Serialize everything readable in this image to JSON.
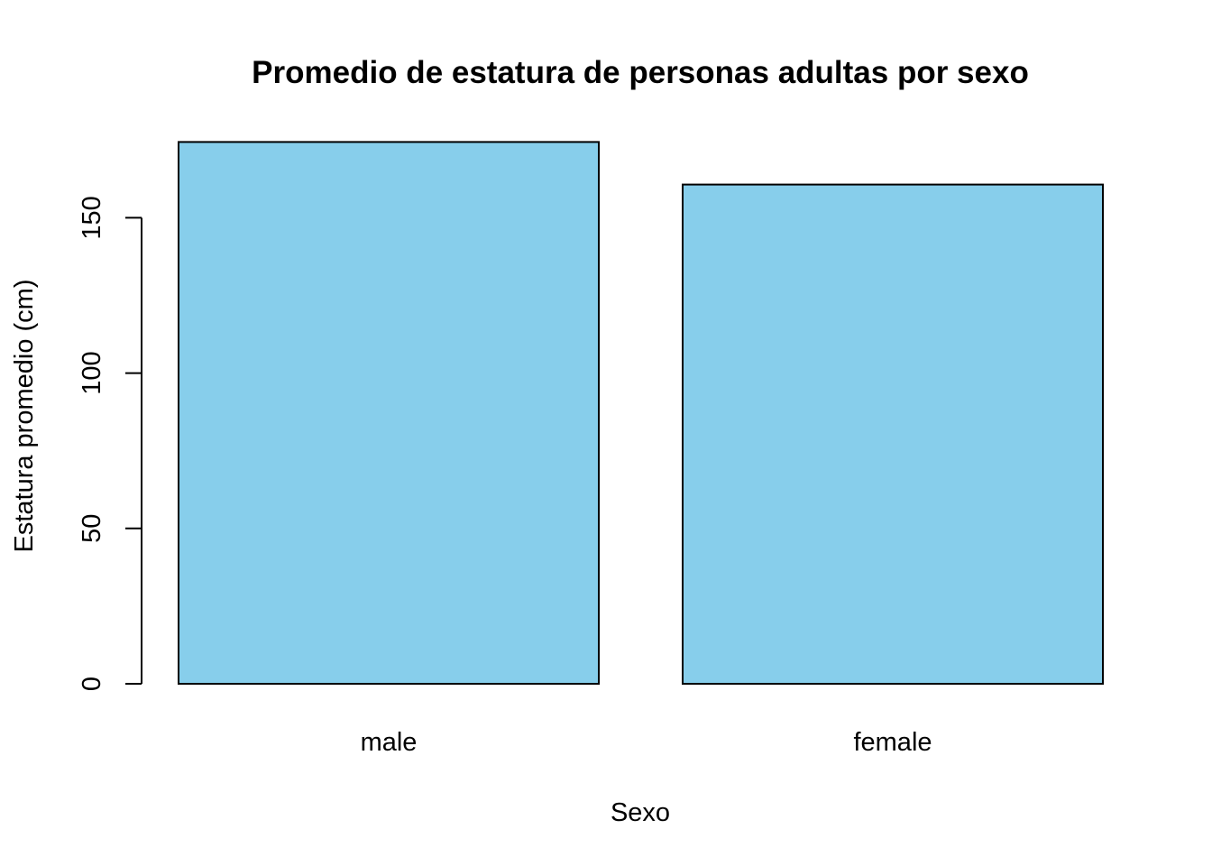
{
  "chart_data": {
    "type": "bar",
    "title": "Promedio de estatura de personas adultas por sexo",
    "xlabel": "Sexo",
    "ylabel": "Estatura promedio (cm)",
    "categories": [
      "male",
      "female"
    ],
    "values": [
      174.4,
      160.7
    ],
    "ylim": [
      0,
      174.4
    ],
    "yticks": [
      0,
      50,
      100,
      150
    ],
    "ytick_labels": [
      "0",
      "50",
      "100",
      "150"
    ],
    "bar_color": "#87CEEB",
    "border_color": "#000000",
    "grid": false,
    "legend": "none"
  }
}
